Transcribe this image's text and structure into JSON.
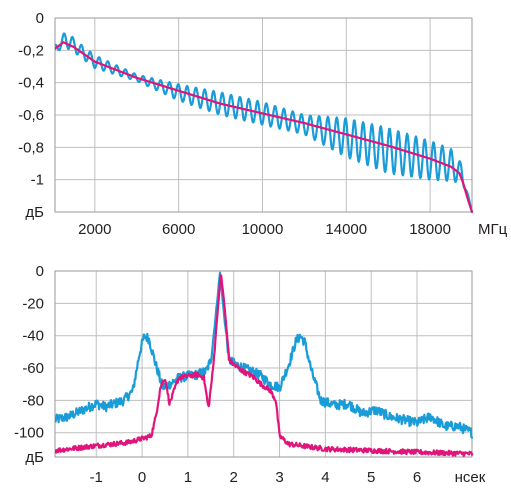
{
  "colors": {
    "series_cyan": "#1a9cd8",
    "series_magenta": "#e0147a",
    "grid": "#bfbfbf",
    "text": "#231f20"
  },
  "chart_data": [
    {
      "type": "line",
      "xunit": "МГц",
      "yunit": "дБ",
      "xlim": [
        100,
        20000
      ],
      "ylim": [
        -1.2,
        0
      ],
      "xticks": [
        2000,
        6000,
        10000,
        14000,
        18000
      ],
      "xtick_labels": [
        "2000",
        "6000",
        "10000",
        "14000",
        "18000"
      ],
      "yticks": [
        0,
        -0.2,
        -0.4,
        -0.6,
        -0.8,
        -1
      ],
      "ytick_labels": [
        "0",
        "-0,2",
        "-0,4",
        "-0,6",
        "-0,8",
        "-1"
      ],
      "grid": true,
      "series": [
        {
          "color": "#1a9cd8",
          "x": [
            100,
            400,
            700,
            1000,
            2000,
            4000,
            6000,
            8000,
            10000,
            12000,
            14000,
            16000,
            18000,
            19000,
            19500,
            19700,
            20000
          ],
          "y": [
            -0.2,
            -0.15,
            -0.13,
            -0.17,
            -0.27,
            -0.37,
            -0.46,
            -0.53,
            -0.59,
            -0.66,
            -0.74,
            -0.82,
            -0.88,
            -0.91,
            -0.96,
            -1.05,
            -1.2
          ],
          "ripple": [
            0.03,
            0.035,
            0.06,
            0.04,
            0.04,
            0.02,
            0.05,
            0.07,
            0.07,
            0.06,
            0.12,
            0.14,
            0.12,
            0.1,
            0.06,
            0.02,
            0.0
          ],
          "ripple_period_mhz": 420
        },
        {
          "color": "#e0147a",
          "x": [
            100,
            500,
            1000,
            2000,
            4000,
            6000,
            8000,
            10000,
            12000,
            14000,
            16000,
            18000,
            19000,
            19400,
            19600,
            19800,
            20000
          ],
          "y": [
            -0.19,
            -0.15,
            -0.18,
            -0.27,
            -0.37,
            -0.45,
            -0.53,
            -0.59,
            -0.65,
            -0.72,
            -0.79,
            -0.87,
            -0.92,
            -0.96,
            -1.03,
            -1.12,
            -1.2
          ]
        }
      ]
    },
    {
      "type": "line",
      "xunit": "нсек",
      "yunit": "дБ",
      "xlim": [
        -1.9,
        7.2
      ],
      "ylim": [
        -115,
        0
      ],
      "xticks": [
        -1,
        0,
        1,
        2,
        3,
        4,
        5,
        6
      ],
      "xtick_labels": [
        "-1",
        "0",
        "1",
        "2",
        "3",
        "4",
        "5",
        "6"
      ],
      "yticks": [
        0,
        -20,
        -40,
        -60,
        -80,
        -100
      ],
      "ytick_labels": [
        "0",
        "-20",
        "-40",
        "-60",
        "-80",
        "-100"
      ],
      "grid": true,
      "series": [
        {
          "color": "#1a9cd8",
          "noise_db": 6,
          "x": [
            -1.9,
            -1.6,
            -1.3,
            -1.0,
            -0.8,
            -0.6,
            -0.4,
            -0.2,
            -0.05,
            0.05,
            0.15,
            0.3,
            0.45,
            0.6,
            0.8,
            1.0,
            1.2,
            1.4,
            1.5,
            1.6,
            1.7,
            1.8,
            1.9,
            2.0,
            2.2,
            2.4,
            2.6,
            2.8,
            3.0,
            3.2,
            3.35,
            3.45,
            3.55,
            3.7,
            3.9,
            4.2,
            4.5,
            4.8,
            5.1,
            5.4,
            5.7,
            6.0,
            6.3,
            6.6,
            6.9,
            7.2
          ],
          "y": [
            -92,
            -90,
            -86,
            -82,
            -84,
            -82,
            -80,
            -74,
            -50,
            -40,
            -42,
            -58,
            -72,
            -70,
            -66,
            -65,
            -64,
            -62,
            -55,
            -30,
            -1,
            -30,
            -55,
            -57,
            -60,
            -62,
            -65,
            -70,
            -72,
            -58,
            -44,
            -40,
            -44,
            -62,
            -80,
            -83,
            -82,
            -88,
            -86,
            -90,
            -92,
            -94,
            -90,
            -96,
            -96,
            -100
          ]
        },
        {
          "color": "#e0147a",
          "noise_db": 3,
          "x": [
            -1.9,
            -1.0,
            -0.3,
            0.2,
            0.3,
            0.4,
            0.5,
            0.6,
            0.8,
            1.0,
            1.2,
            1.35,
            1.45,
            1.55,
            1.65,
            1.72,
            1.8,
            1.9,
            2.0,
            2.2,
            2.4,
            2.6,
            2.8,
            2.92,
            3.0,
            3.2,
            4.0,
            5.0,
            6.0,
            7.2
          ],
          "y": [
            -111,
            -108,
            -106,
            -102,
            -90,
            -72,
            -66,
            -82,
            -66,
            -65,
            -64,
            -66,
            -85,
            -60,
            -25,
            -1,
            -22,
            -55,
            -58,
            -62,
            -65,
            -70,
            -74,
            -80,
            -102,
            -107,
            -110,
            -111,
            -112,
            -113
          ]
        }
      ]
    }
  ]
}
